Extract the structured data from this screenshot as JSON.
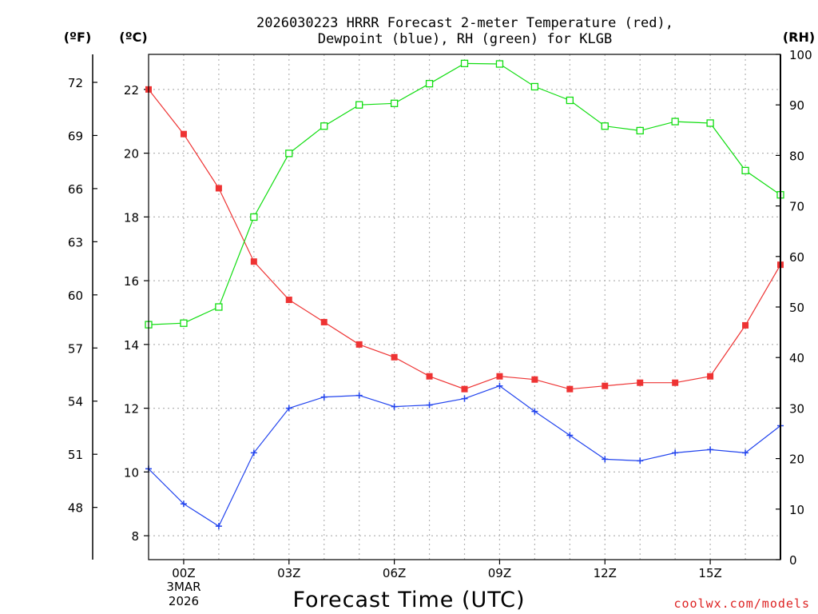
{
  "chart_data": {
    "type": "line",
    "title": [
      "2026030223 HRRR Forecast 2-meter Temperature (red),",
      "Dewpoint (blue), RH (green) for KLGB"
    ],
    "units": {
      "fahrenheit": "(ºF)",
      "celsius": "(ºC)",
      "rh": "(RH)"
    },
    "xlabel": "Forecast Time (UTC)",
    "credit": "coolwx.com/models",
    "x_range_hours": [
      -1,
      17
    ],
    "x_ticks": [
      {
        "hour": 0,
        "label": "00Z"
      },
      {
        "hour": 3,
        "label": "03Z"
      },
      {
        "hour": 6,
        "label": "06Z"
      },
      {
        "hour": 9,
        "label": "09Z"
      },
      {
        "hour": 12,
        "label": "12Z"
      },
      {
        "hour": 15,
        "label": "15Z"
      }
    ],
    "date_label": [
      "3MAR",
      "2026"
    ],
    "y_celsius": {
      "range": [
        7.25,
        23.1
      ],
      "ticks": [
        8,
        10,
        12,
        14,
        16,
        18,
        20,
        22
      ]
    },
    "y_fahrenheit_ticks": [
      48,
      51,
      54,
      57,
      60,
      63,
      66,
      69,
      72
    ],
    "y_rh": {
      "range": [
        0,
        100
      ],
      "ticks": [
        0,
        10,
        20,
        30,
        40,
        50,
        60,
        70,
        80,
        90,
        100
      ]
    },
    "series": [
      {
        "name": "Temperature",
        "unit": "C",
        "color": "#ee3333",
        "marker": "filled-square",
        "x": [
          -1,
          0,
          1,
          2,
          3,
          4,
          5,
          6,
          7,
          8,
          9,
          10,
          11,
          12,
          13,
          14,
          15,
          16,
          17
        ],
        "values": [
          22.0,
          20.6,
          18.9,
          16.6,
          15.4,
          14.7,
          14.0,
          13.6,
          13.0,
          12.6,
          13.0,
          12.9,
          12.6,
          12.7,
          12.8,
          12.8,
          13.0,
          14.6,
          16.5
        ]
      },
      {
        "name": "Dewpoint",
        "unit": "C",
        "color": "#2244ee",
        "marker": "plus",
        "x": [
          -1,
          0,
          1,
          2,
          3,
          4,
          5,
          6,
          7,
          8,
          9,
          10,
          11,
          12,
          13,
          14,
          15,
          16,
          17
        ],
        "values": [
          10.1,
          9.0,
          8.3,
          10.6,
          12.0,
          12.35,
          12.4,
          12.05,
          12.1,
          12.3,
          12.7,
          11.9,
          11.15,
          10.4,
          10.35,
          10.6,
          10.7,
          10.6,
          11.45
        ]
      },
      {
        "name": "RH",
        "unit": "%",
        "color": "#11dd11",
        "marker": "open-square",
        "x": [
          -1,
          0,
          1,
          2,
          3,
          4,
          5,
          6,
          7,
          8,
          9,
          10,
          11,
          12,
          13,
          14,
          15,
          16,
          17
        ],
        "values": [
          46.5,
          46.8,
          50.0,
          67.8,
          80.4,
          85.8,
          90.0,
          90.3,
          94.2,
          98.2,
          98.1,
          93.6,
          90.9,
          85.8,
          84.9,
          86.7,
          86.4,
          77.0,
          72.2
        ]
      }
    ]
  }
}
